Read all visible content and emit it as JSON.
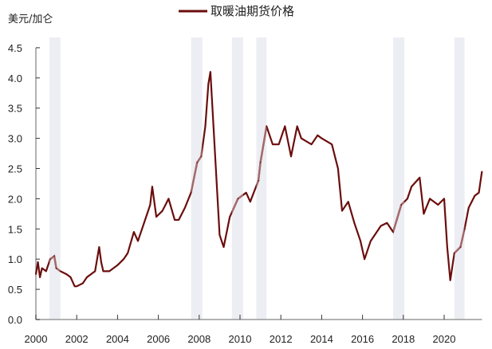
{
  "chart_data": {
    "type": "line",
    "title": "",
    "ylabel": "美元/加仑",
    "xlabel": "",
    "legend": [
      "取暖油期货价格"
    ],
    "legend_placement": "top-center",
    "xlim": [
      2000,
      2021.85
    ],
    "ylim": [
      0,
      4.5
    ],
    "x_ticks": [
      "2000",
      "2002",
      "2004",
      "2006",
      "2008",
      "2010",
      "2012",
      "2014",
      "2016",
      "2018",
      "2020"
    ],
    "y_ticks": [
      "0.0",
      "0.5",
      "1.0",
      "1.5",
      "2.0",
      "2.5",
      "3.0",
      "3.5",
      "4.0",
      "4.5"
    ],
    "shaded_periods": [
      [
        2000.66,
        2001.2
      ],
      [
        2007.6,
        2008.15
      ],
      [
        2009.6,
        2010.15
      ],
      [
        2010.8,
        2011.3
      ],
      [
        2017.5,
        2018.05
      ],
      [
        2020.5,
        2021.0
      ]
    ],
    "colors": {
      "line": "#6b0d0d",
      "line_shaded": "#a46a6a",
      "band": "#eceef3",
      "axis": "#999999"
    },
    "series": [
      {
        "name": "取暖油期货价格",
        "x": [
          2000.0,
          2000.1,
          2000.2,
          2000.3,
          2000.5,
          2000.7,
          2000.9,
          2001.0,
          2001.2,
          2001.5,
          2001.7,
          2001.9,
          2002.0,
          2002.3,
          2002.5,
          2002.7,
          2002.9,
          2003.1,
          2003.2,
          2003.3,
          2003.6,
          2004.0,
          2004.3,
          2004.5,
          2004.8,
          2005.0,
          2005.3,
          2005.6,
          2005.7,
          2005.9,
          2006.2,
          2006.5,
          2006.8,
          2007.0,
          2007.3,
          2007.6,
          2007.9,
          2008.1,
          2008.3,
          2008.45,
          2008.55,
          2008.7,
          2008.9,
          2009.0,
          2009.2,
          2009.5,
          2009.9,
          2010.3,
          2010.5,
          2010.9,
          2011.0,
          2011.3,
          2011.6,
          2011.9,
          2012.2,
          2012.5,
          2012.8,
          2013.0,
          2013.5,
          2013.8,
          2014.0,
          2014.5,
          2014.8,
          2015.0,
          2015.3,
          2015.6,
          2015.9,
          2016.1,
          2016.4,
          2016.6,
          2016.9,
          2017.2,
          2017.5,
          2017.9,
          2018.2,
          2018.4,
          2018.8,
          2019.0,
          2019.3,
          2019.7,
          2020.0,
          2020.15,
          2020.3,
          2020.5,
          2020.8,
          2021.0,
          2021.2,
          2021.5,
          2021.7,
          2021.85
        ],
        "values": [
          0.75,
          0.95,
          0.7,
          0.85,
          0.8,
          1.0,
          1.05,
          0.85,
          0.8,
          0.75,
          0.7,
          0.55,
          0.55,
          0.6,
          0.7,
          0.75,
          0.8,
          1.2,
          0.95,
          0.8,
          0.8,
          0.9,
          1.0,
          1.1,
          1.45,
          1.3,
          1.6,
          1.9,
          2.2,
          1.7,
          1.8,
          2.0,
          1.65,
          1.65,
          1.85,
          2.1,
          2.6,
          2.7,
          3.2,
          3.9,
          4.1,
          3.2,
          2.0,
          1.4,
          1.2,
          1.7,
          2.0,
          2.1,
          1.95,
          2.3,
          2.6,
          3.2,
          2.9,
          2.9,
          3.2,
          2.7,
          3.2,
          3.0,
          2.9,
          3.05,
          3.0,
          2.9,
          2.5,
          1.8,
          1.95,
          1.6,
          1.3,
          1.0,
          1.3,
          1.4,
          1.55,
          1.6,
          1.45,
          1.9,
          2.0,
          2.2,
          2.35,
          1.75,
          2.0,
          1.9,
          2.0,
          1.2,
          0.65,
          1.1,
          1.2,
          1.5,
          1.85,
          2.05,
          2.1,
          2.45
        ]
      }
    ]
  }
}
